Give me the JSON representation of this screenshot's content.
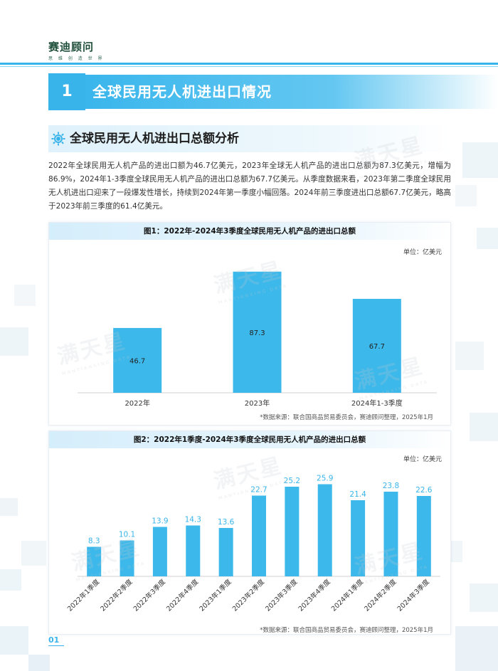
{
  "brand": {
    "name": "赛迪顾问",
    "slogan": "思 维 创 造 世 界"
  },
  "section": {
    "number": "1",
    "title": "全球民用无人机进出口情况"
  },
  "subsection": {
    "title": "全球民用无人机进出口总额分析"
  },
  "paragraph": "2022年全球民用无人机产品的进出口额为46.7亿美元，2023年全球无人机产品的进出口总额为87.3亿美元，增幅为86.9%，2024年1-3季度全球民用无人机产品的进出口总额为67.7亿美元。从季度数据来看，2023年第二季度全球民用无人机进出口迎来了一段爆发性增长，持续到2024年第一季度小幅回落。2024年前三季度进出口总额67.7亿美元，略高于2023年前三季度的61.4亿美元。",
  "watermark": {
    "text": "满天星",
    "sub": "MANTIANXING DATA"
  },
  "colors": {
    "accent": "#39b4ea",
    "bar": "#3cb8ea"
  },
  "chart1": {
    "title": "图1：2022年-2024年3季度全球民用无人机产品的进出口总额",
    "unit": "单位：亿美元",
    "source": "*数据来源：联合国商品贸易委员会，赛迪顾问整理，2025年1月"
  },
  "chart2": {
    "title": "图2：2022年1季度-2024年3季度全球民用无人机产品的进出口总额",
    "unit": "单位：亿美元",
    "source": "*数据来源：联合国商品贸易委员会，赛迪顾问整理，2025年1月"
  },
  "chart_data": [
    {
      "type": "bar",
      "title": "图1：2022年-2024年3季度全球民用无人机产品的进出口总额",
      "categories": [
        "2022年",
        "2023年",
        "2024年1-3季度"
      ],
      "values": [
        46.7,
        87.3,
        67.7
      ],
      "ylabel": "单位：亿美元",
      "ylim": [
        0,
        100
      ],
      "grid": false,
      "data_label_position": "inside"
    },
    {
      "type": "bar",
      "title": "图2：2022年1季度-2024年3季度全球民用无人机产品的进出口总额",
      "categories": [
        "2022年1季度",
        "2022年2季度",
        "2022年3季度",
        "2022年4季度",
        "2023年1季度",
        "2023年2季度",
        "2023年3季度",
        "2023年4季度",
        "2024年1季度",
        "2024年2季度",
        "2024年3季度"
      ],
      "values": [
        8.3,
        10.1,
        13.9,
        14.3,
        13.6,
        22.7,
        25.2,
        25.9,
        21.4,
        23.8,
        22.6
      ],
      "ylabel": "单位：亿美元",
      "ylim": [
        0,
        30
      ],
      "grid": false,
      "data_label_position": "above"
    }
  ],
  "page": {
    "number": "01"
  }
}
